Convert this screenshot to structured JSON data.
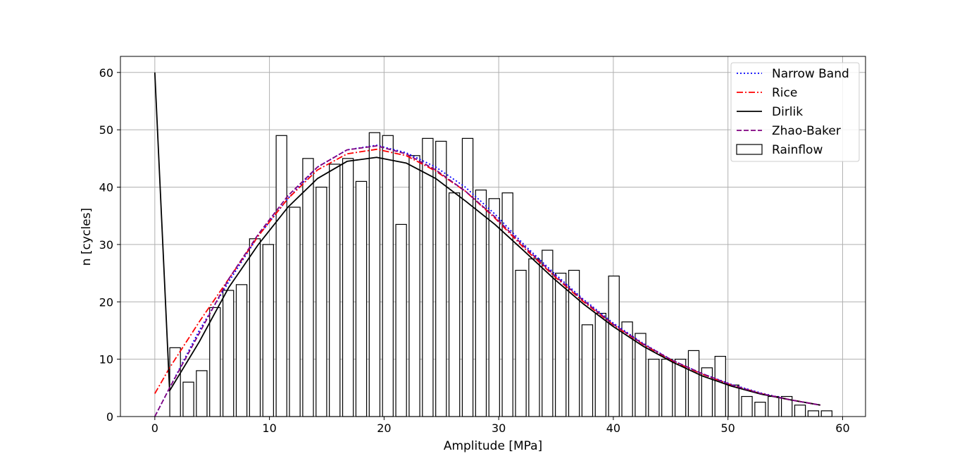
{
  "chart_data": {
    "type": "bar",
    "title": "",
    "xlabel": "Amplitude [MPa]",
    "ylabel": "n [cycles]",
    "xlim": [
      -3,
      62
    ],
    "ylim": [
      0,
      62.8
    ],
    "xticks": [
      0,
      10,
      20,
      30,
      40,
      50,
      60
    ],
    "yticks": [
      0,
      10,
      20,
      30,
      40,
      50,
      60
    ],
    "grid": true,
    "legend_position": "top-right",
    "bars": {
      "name": "Rainflow",
      "width": 0.93,
      "x": [
        1.77,
        2.93,
        4.09,
        5.25,
        6.41,
        7.57,
        8.73,
        9.89,
        11.05,
        12.21,
        13.37,
        14.53,
        15.69,
        16.85,
        18.01,
        19.17,
        20.33,
        21.49,
        22.65,
        23.81,
        24.97,
        26.13,
        27.29,
        28.45,
        29.61,
        30.77,
        31.93,
        33.09,
        34.25,
        35.41,
        36.57,
        37.73,
        38.89,
        40.05,
        41.21,
        42.37,
        43.53,
        44.69,
        45.85,
        47.01,
        48.17,
        49.33,
        50.49,
        51.65,
        52.81,
        53.97,
        55.13,
        56.29,
        57.45,
        58.61
      ],
      "values": [
        12,
        6,
        8,
        19,
        22,
        23,
        31,
        30,
        49,
        36.5,
        45,
        40,
        44,
        45,
        41,
        49.5,
        49,
        33.5,
        45.5,
        48.5,
        48,
        39,
        48.5,
        39.5,
        38,
        39,
        25.5,
        27.5,
        29,
        25,
        25.5,
        16,
        18,
        24.5,
        16.5,
        14.5,
        10,
        10,
        10,
        11.5,
        8.5,
        10.5,
        5.5,
        3.5,
        2.5,
        3.5,
        3.5,
        2,
        1,
        1
      ]
    },
    "series": [
      {
        "name": "Narrow Band",
        "color": "#0000ff",
        "style": "dotted",
        "x": [
          0,
          1.29,
          3.87,
          6.45,
          9.03,
          11.61,
          14.19,
          16.77,
          19.35,
          21.93,
          24.51,
          27.09,
          29.67,
          32.25,
          34.83,
          37.41,
          39.99,
          42.57,
          45.15,
          47.73,
          50.31,
          52.89,
          55.47,
          58.05
        ],
        "values": [
          0,
          5,
          15,
          23.5,
          31.5,
          38,
          43.5,
          46.5,
          47.3,
          46,
          43.5,
          40,
          35.3,
          29.9,
          25,
          20.4,
          16.3,
          12.8,
          9.8,
          7.5,
          5.6,
          4.1,
          2.9,
          2
        ]
      },
      {
        "name": "Rice",
        "color": "#ff0000",
        "style": "dashdot",
        "x": [
          0,
          1.29,
          3.87,
          6.45,
          9.03,
          11.61,
          14.19,
          16.77,
          19.35,
          21.93,
          24.51,
          27.09,
          29.67,
          32.25,
          34.83,
          37.41,
          39.99,
          42.57,
          45.15,
          47.73,
          50.31,
          52.89,
          55.47,
          58.05
        ],
        "values": [
          4,
          8.5,
          16.5,
          24,
          31.5,
          38,
          43,
          45.8,
          46.6,
          45.5,
          42.8,
          39.3,
          34.6,
          29.3,
          24.5,
          20,
          16,
          12.6,
          9.7,
          7.4,
          5.5,
          4,
          2.9,
          2
        ]
      },
      {
        "name": "Dirlik",
        "color": "#000000",
        "style": "solid",
        "x": [
          0,
          1.29,
          3.87,
          6.45,
          9.03,
          11.61,
          14.19,
          16.77,
          19.35,
          21.93,
          24.51,
          27.09,
          29.67,
          32.25,
          34.83,
          37.41,
          39.99,
          42.57,
          45.15,
          47.73,
          50.31,
          52.89,
          55.47,
          58.05
        ],
        "values": [
          60,
          4.5,
          13,
          22.5,
          30,
          36.5,
          41.5,
          44.5,
          45.2,
          44.2,
          41.5,
          37.6,
          33.5,
          28.8,
          24,
          19.6,
          15.7,
          12.3,
          9.5,
          7.1,
          5.3,
          3.9,
          2.9,
          2
        ]
      },
      {
        "name": "Zhao-Baker",
        "color": "#800080",
        "style": "dashed",
        "x": [
          0,
          1.29,
          3.87,
          6.45,
          9.03,
          11.61,
          14.19,
          16.77,
          19.35,
          21.93,
          24.51,
          27.09,
          29.67,
          32.25,
          34.83,
          37.41,
          39.99,
          42.57,
          45.15,
          47.73,
          50.31,
          52.89,
          55.47,
          58.05
        ],
        "values": [
          0,
          5,
          14.5,
          24,
          31.8,
          38.5,
          43.5,
          46.5,
          47.2,
          45.8,
          43,
          39.3,
          34.8,
          29.6,
          24.7,
          20.2,
          16.1,
          12.7,
          9.8,
          7.5,
          5.5,
          4,
          2.9,
          2
        ]
      }
    ]
  }
}
